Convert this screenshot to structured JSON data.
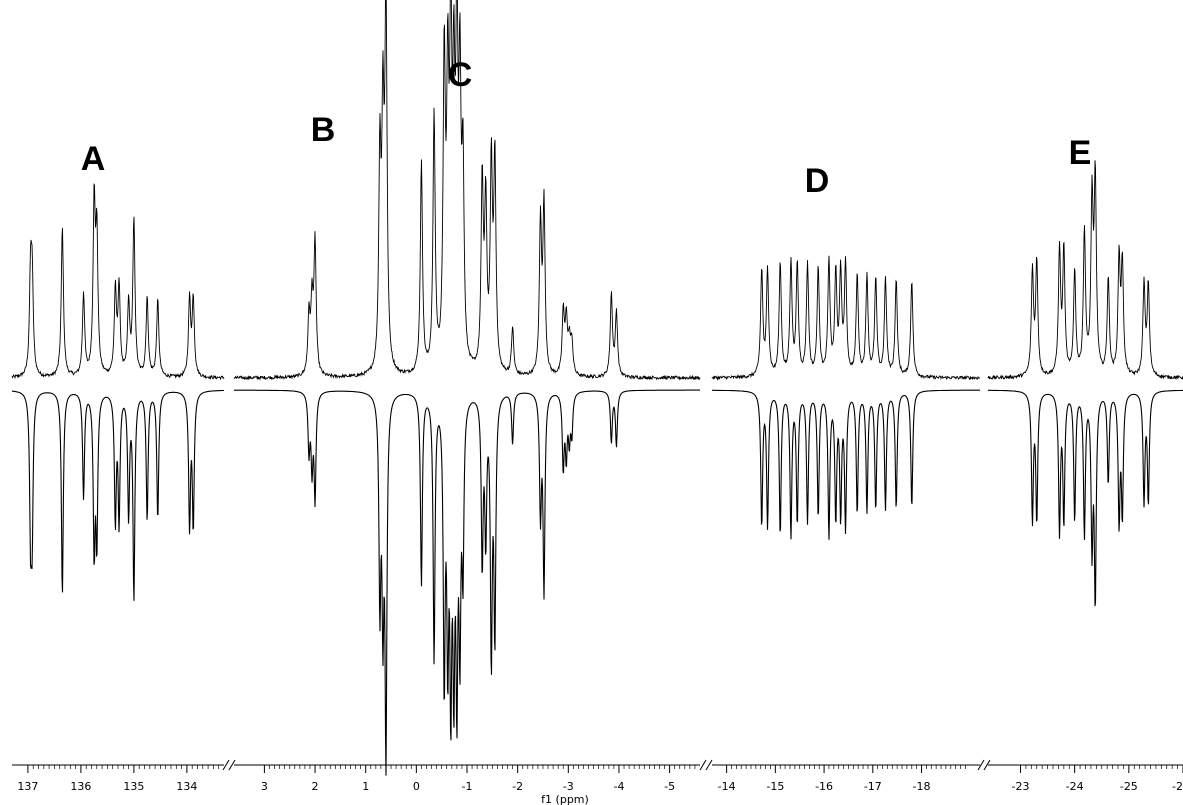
{
  "chart_data": {
    "type": "line",
    "title": "",
    "xlabel": "f1 (ppm)",
    "ylabel": "",
    "grid": false,
    "x_axis_reversed": true,
    "axis_breaks": true,
    "colors": {
      "trace": "#000000",
      "axis": "#000000",
      "background": "#ffffff"
    },
    "panels": [
      {
        "label": "A",
        "xlim": [
          137.3,
          133.3
        ],
        "ticks": [
          "137",
          "136",
          "135",
          "134"
        ],
        "peaks": [
          {
            "ppm": 136.95,
            "experimental": 0.52,
            "simulated": 0.73
          },
          {
            "ppm": 136.92,
            "experimental": 0.5,
            "simulated": 0.72
          },
          {
            "ppm": 136.35,
            "experimental": 0.82,
            "simulated": 1.12
          },
          {
            "ppm": 135.95,
            "experimental": 0.45,
            "simulated": 0.58
          },
          {
            "ppm": 135.75,
            "experimental": 0.92,
            "simulated": 0.85
          },
          {
            "ppm": 135.7,
            "experimental": 0.74,
            "simulated": 0.8
          },
          {
            "ppm": 135.35,
            "experimental": 0.46,
            "simulated": 0.7
          },
          {
            "ppm": 135.28,
            "experimental": 0.48,
            "simulated": 0.7
          },
          {
            "ppm": 135.1,
            "experimental": 0.39,
            "simulated": 0.67
          },
          {
            "ppm": 135.0,
            "experimental": 0.85,
            "simulated": 1.12
          },
          {
            "ppm": 134.75,
            "experimental": 0.43,
            "simulated": 0.7
          },
          {
            "ppm": 134.55,
            "experimental": 0.42,
            "simulated": 0.7
          },
          {
            "ppm": 133.95,
            "experimental": 0.42,
            "simulated": 0.73
          },
          {
            "ppm": 133.88,
            "experimental": 0.42,
            "simulated": 0.73
          }
        ]
      },
      {
        "label": "B",
        "xlim": [
          3.6,
          -5.6
        ],
        "ticks": [
          "3",
          "2",
          "1",
          "0",
          "-1",
          "-2",
          "-3",
          "-4",
          "-5"
        ],
        "peaks": [
          {
            "ppm": 2.12,
            "experimental": 0.32,
            "simulated": 0.32
          },
          {
            "ppm": 2.06,
            "experimental": 0.38,
            "simulated": 0.4
          },
          {
            "ppm": 2.0,
            "experimental": 0.72,
            "simulated": 0.58
          }
        ]
      },
      {
        "label": "C",
        "xlim": [
          3.6,
          -5.6
        ],
        "ticks": [
          "3",
          "2",
          "1",
          "0",
          "-1",
          "-2",
          "-3",
          "-4",
          "-5"
        ],
        "peaks": [
          {
            "ppm": 0.72,
            "experimental": 1.15,
            "simulated": 1.12
          },
          {
            "ppm": 0.66,
            "experimental": 1.3,
            "simulated": 1.15
          },
          {
            "ppm": 0.6,
            "experimental": 2.0,
            "simulated": 1.94
          },
          {
            "ppm": -0.1,
            "experimental": 1.15,
            "simulated": 1.05
          },
          {
            "ppm": -0.35,
            "experimental": 1.4,
            "simulated": 1.45
          },
          {
            "ppm": -0.55,
            "experimental": 1.65,
            "simulated": 1.54
          },
          {
            "ppm": -0.62,
            "experimental": 1.42,
            "simulated": 1.3
          },
          {
            "ppm": -0.68,
            "experimental": 1.68,
            "simulated": 1.52
          },
          {
            "ppm": -0.74,
            "experimental": 1.34,
            "simulated": 1.4
          },
          {
            "ppm": -0.8,
            "experimental": 1.7,
            "simulated": 1.5
          },
          {
            "ppm": -0.86,
            "experimental": 1.45,
            "simulated": 1.25
          },
          {
            "ppm": -0.92,
            "experimental": 1.05,
            "simulated": 0.9
          },
          {
            "ppm": -1.3,
            "experimental": 1.03,
            "simulated": 0.92
          },
          {
            "ppm": -1.37,
            "experimental": 0.9,
            "simulated": 0.76
          },
          {
            "ppm": -1.48,
            "experimental": 1.1,
            "simulated": 1.42
          },
          {
            "ppm": -1.55,
            "experimental": 1.15,
            "simulated": 1.3
          },
          {
            "ppm": -1.9,
            "experimental": 0.26,
            "simulated": 0.28
          },
          {
            "ppm": -2.45,
            "experimental": 0.82,
            "simulated": 0.66
          },
          {
            "ppm": -2.52,
            "experimental": 0.92,
            "simulated": 1.08
          },
          {
            "ppm": -2.9,
            "experimental": 0.34,
            "simulated": 0.41
          },
          {
            "ppm": -2.96,
            "experimental": 0.3,
            "simulated": 0.34
          },
          {
            "ppm": -3.02,
            "experimental": 0.18,
            "simulated": 0.25
          },
          {
            "ppm": -3.07,
            "experimental": 0.18,
            "simulated": 0.22
          },
          {
            "ppm": -3.85,
            "experimental": 0.45,
            "simulated": 0.28
          },
          {
            "ppm": -3.95,
            "experimental": 0.35,
            "simulated": 0.3
          }
        ]
      },
      {
        "label": "D",
        "xlim": [
          -13.7,
          -19.2
        ],
        "ticks": [
          "-14",
          "-15",
          "-16",
          "-17",
          "-18"
        ],
        "peaks": [
          {
            "ppm": -14.72,
            "experimental": 0.58,
            "simulated": 0.73
          },
          {
            "ppm": -14.84,
            "experimental": 0.58,
            "simulated": 0.73
          },
          {
            "ppm": -15.1,
            "experimental": 0.62,
            "simulated": 0.78
          },
          {
            "ppm": -15.32,
            "experimental": 0.62,
            "simulated": 0.78
          },
          {
            "ppm": -15.45,
            "experimental": 0.61,
            "simulated": 0.71
          },
          {
            "ppm": -15.66,
            "experimental": 0.61,
            "simulated": 0.71
          },
          {
            "ppm": -15.88,
            "experimental": 0.59,
            "simulated": 0.68
          },
          {
            "ppm": -16.1,
            "experimental": 0.62,
            "simulated": 0.78
          },
          {
            "ppm": -16.24,
            "experimental": 0.55,
            "simulated": 0.68
          },
          {
            "ppm": -16.34,
            "experimental": 0.55,
            "simulated": 0.66
          },
          {
            "ppm": -16.44,
            "experimental": 0.6,
            "simulated": 0.73
          },
          {
            "ppm": -16.68,
            "experimental": 0.55,
            "simulated": 0.66
          },
          {
            "ppm": -16.88,
            "experimental": 0.55,
            "simulated": 0.65
          },
          {
            "ppm": -17.06,
            "experimental": 0.53,
            "simulated": 0.64
          },
          {
            "ppm": -17.26,
            "experimental": 0.53,
            "simulated": 0.64
          },
          {
            "ppm": -17.48,
            "experimental": 0.53,
            "simulated": 0.64
          },
          {
            "ppm": -17.8,
            "experimental": 0.53,
            "simulated": 0.64
          }
        ]
      },
      {
        "label": "E",
        "xlim": [
          -22.4,
          -26.0
        ],
        "ticks": [
          "-23",
          "-24",
          "-25",
          "-2"
        ],
        "peaks": [
          {
            "ppm": -23.22,
            "experimental": 0.57,
            "simulated": 0.7
          },
          {
            "ppm": -23.3,
            "experimental": 0.62,
            "simulated": 0.7
          },
          {
            "ppm": -23.72,
            "experimental": 0.68,
            "simulated": 0.76
          },
          {
            "ppm": -23.8,
            "experimental": 0.68,
            "simulated": 0.7
          },
          {
            "ppm": -24.0,
            "experimental": 0.57,
            "simulated": 0.7
          },
          {
            "ppm": -24.18,
            "experimental": 0.78,
            "simulated": 0.78
          },
          {
            "ppm": -24.32,
            "experimental": 0.93,
            "simulated": 0.82
          },
          {
            "ppm": -24.38,
            "experimental": 1.05,
            "simulated": 1.12
          },
          {
            "ppm": -24.62,
            "experimental": 0.53,
            "simulated": 0.5
          },
          {
            "ppm": -24.82,
            "experimental": 0.63,
            "simulated": 0.7
          },
          {
            "ppm": -24.88,
            "experimental": 0.6,
            "simulated": 0.66
          },
          {
            "ppm": -25.28,
            "experimental": 0.5,
            "simulated": 0.6
          },
          {
            "ppm": -25.36,
            "experimental": 0.5,
            "simulated": 0.6
          }
        ]
      }
    ]
  }
}
